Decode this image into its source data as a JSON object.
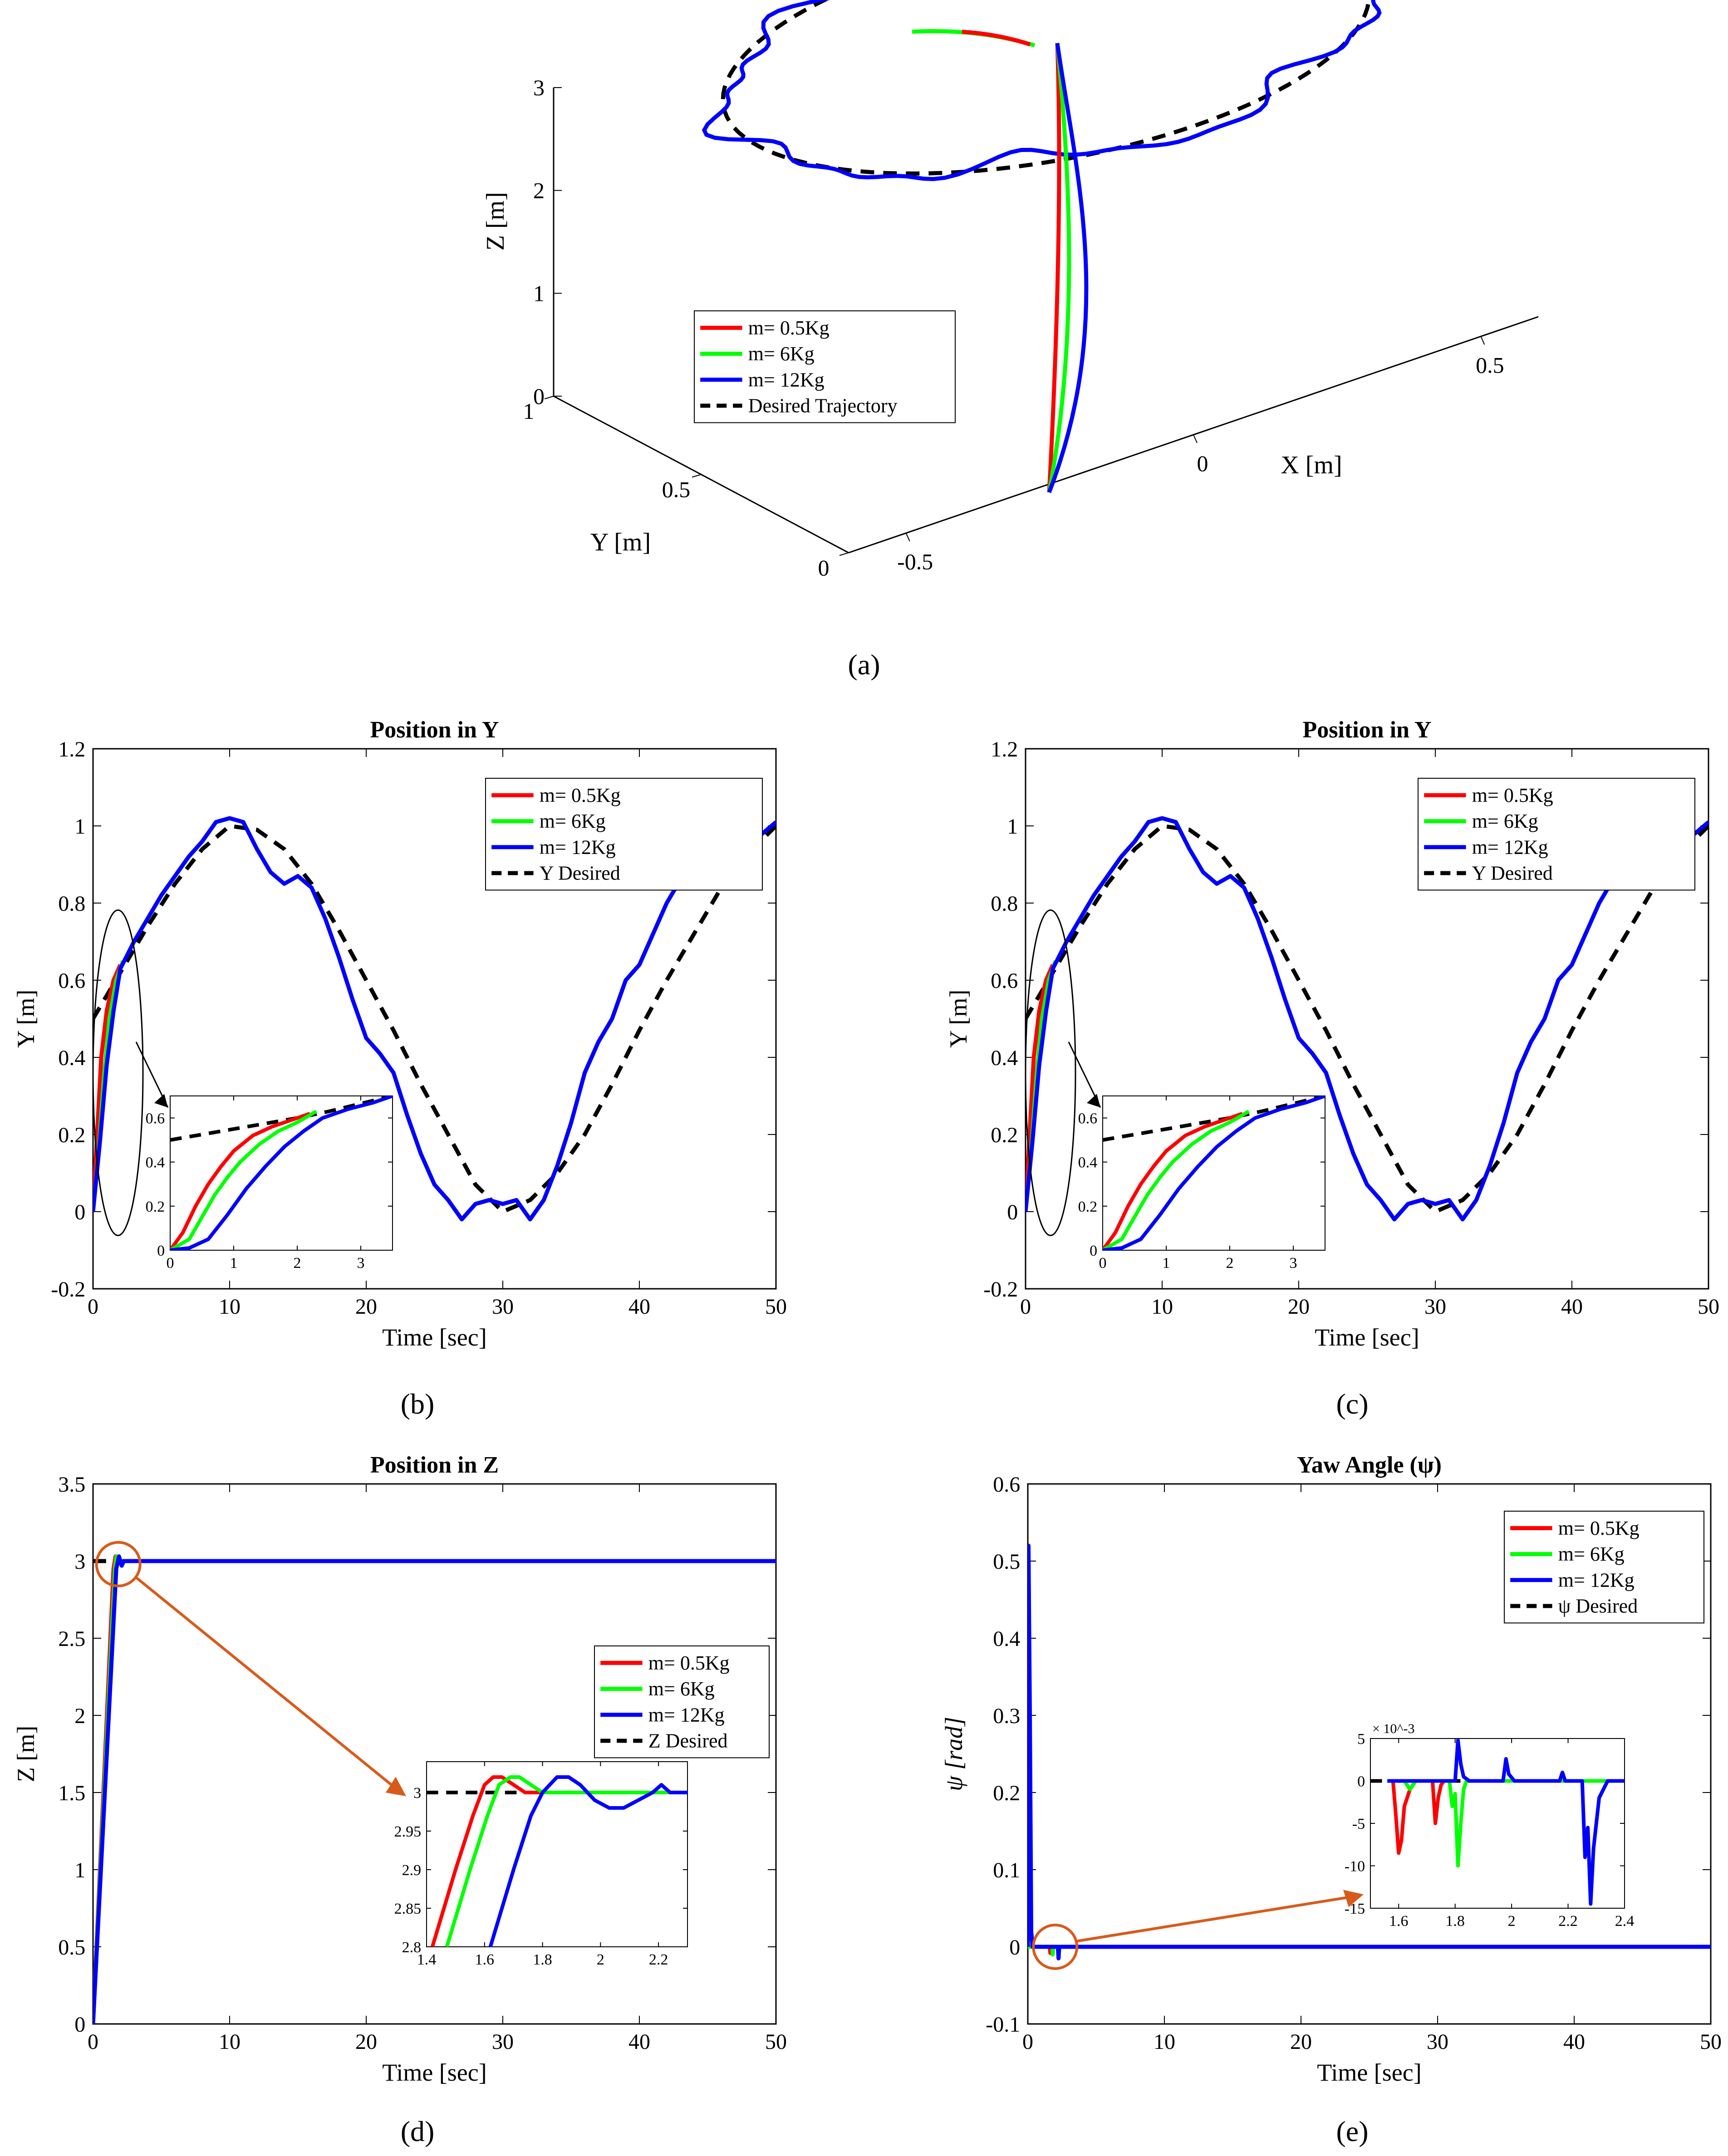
{
  "colors": {
    "red": "#ff0000",
    "green": "#00ff00",
    "blue": "#0000ff",
    "desired": "#000000",
    "arrow": "#d85a1a"
  },
  "panel_labels": {
    "a": "(a)",
    "b": "(b)",
    "c": "(c)",
    "d": "(d)",
    "e": "(e)"
  },
  "chart_data": [
    {
      "id": "a",
      "type": "line",
      "subtype": "3d-trajectory",
      "title": "",
      "xlabel": "X [m]",
      "ylabel": "Y [m]",
      "zlabel": "Z [m]",
      "x_ticks": [
        "-0.5",
        "0",
        "0.5"
      ],
      "y_ticks": [
        "0",
        "0.5",
        "1"
      ],
      "z_ticks": [
        "0",
        "1",
        "2",
        "3"
      ],
      "xlim": [
        -0.6,
        0.6
      ],
      "ylim": [
        0,
        1
      ],
      "zlim": [
        0,
        3
      ],
      "legend": [
        "m= 0.5Kg",
        "m= 6Kg",
        "m= 12Kg",
        "Desired Trajectory"
      ],
      "legend_position": "center",
      "desired": {
        "type": "circle",
        "z": 3,
        "center_x": 0,
        "center_y": 0.5,
        "radius": 0.5
      },
      "climb": {
        "from": [
          0,
          0,
          0
        ],
        "to": [
          0,
          0.5,
          3
        ]
      }
    },
    {
      "id": "b",
      "type": "line",
      "title": "Position in Y",
      "xlabel": "Time [sec]",
      "ylabel": "Y [m]",
      "xlim": [
        0,
        50
      ],
      "ylim": [
        -0.2,
        1.2
      ],
      "x_ticks": [
        "0",
        "10",
        "20",
        "30",
        "40",
        "50"
      ],
      "y_ticks": [
        "-0.2",
        "0",
        "0.2",
        "0.4",
        "0.6",
        "0.8",
        "1",
        "1.2"
      ],
      "legend": [
        "m= 0.5Kg",
        "m= 6Kg",
        "m= 12Kg",
        "Y Desired"
      ],
      "legend_position": "top-right",
      "desired": {
        "x": [
          0,
          2,
          4,
          6,
          8,
          10,
          12,
          14,
          16,
          18,
          20,
          22,
          24,
          26,
          28,
          30,
          32,
          34,
          36,
          38,
          40,
          42,
          44,
          46,
          48,
          50
        ],
        "y": [
          0.5,
          0.62,
          0.74,
          0.85,
          0.94,
          1.0,
          0.99,
          0.94,
          0.85,
          0.73,
          0.6,
          0.47,
          0.33,
          0.2,
          0.07,
          0.0,
          0.03,
          0.1,
          0.2,
          0.33,
          0.47,
          0.6,
          0.72,
          0.84,
          0.93,
          1.0
        ]
      },
      "series": [
        {
          "name": "m= 0.5Kg",
          "x": [
            0,
            0.3,
            0.6,
            1.0,
            1.5,
            2.0
          ],
          "y": [
            0.0,
            0.2,
            0.4,
            0.52,
            0.6,
            0.64
          ]
        },
        {
          "name": "m= 6Kg",
          "x": [
            0,
            0.4,
            0.8,
            1.2,
            1.7,
            2.2
          ],
          "y": [
            0.0,
            0.15,
            0.35,
            0.5,
            0.6,
            0.65
          ]
        },
        {
          "name": "m= 12Kg",
          "x": [
            0,
            0.5,
            1.0,
            1.5,
            2,
            3,
            4,
            5,
            6,
            7,
            8,
            9,
            10,
            11,
            12,
            13,
            14,
            15,
            16,
            17,
            18,
            19,
            20,
            21,
            22,
            23,
            24,
            25,
            26,
            27,
            28,
            29,
            30,
            31,
            32,
            33,
            34,
            35,
            36,
            37,
            38,
            39,
            40,
            41,
            42,
            43,
            44,
            45,
            46,
            47,
            48,
            49,
            50
          ],
          "y": [
            0.0,
            0.18,
            0.38,
            0.52,
            0.63,
            0.7,
            0.76,
            0.82,
            0.87,
            0.92,
            0.96,
            1.01,
            1.02,
            1.01,
            0.94,
            0.88,
            0.85,
            0.87,
            0.84,
            0.76,
            0.66,
            0.55,
            0.45,
            0.41,
            0.36,
            0.25,
            0.15,
            0.07,
            0.03,
            -0.02,
            0.02,
            0.03,
            0.02,
            0.03,
            -0.02,
            0.03,
            0.12,
            0.23,
            0.36,
            0.44,
            0.5,
            0.6,
            0.64,
            0.72,
            0.8,
            0.86,
            0.93,
            0.9,
            0.95,
            0.96,
            0.97,
            0.98,
            1.01
          ]
        }
      ],
      "inset": {
        "xlim": [
          0,
          3.5
        ],
        "ylim": [
          0,
          0.7
        ],
        "x_ticks": [
          "0",
          "1",
          "2",
          "3"
        ],
        "y_ticks": [
          "0",
          "0.2",
          "0.4",
          "0.6"
        ],
        "desired": {
          "x": [
            0,
            1,
            2,
            2.5,
            3.5
          ],
          "y": [
            0.5,
            0.55,
            0.6,
            0.63,
            0.7
          ]
        },
        "series": [
          {
            "name": "m= 0.5Kg",
            "x": [
              0,
              0.2,
              0.4,
              0.6,
              0.8,
              1.0,
              1.3,
              1.6,
              2.0,
              2.2
            ],
            "y": [
              0.0,
              0.08,
              0.2,
              0.3,
              0.38,
              0.45,
              0.52,
              0.56,
              0.6,
              0.62
            ]
          },
          {
            "name": "m= 6Kg",
            "x": [
              0,
              0.3,
              0.5,
              0.7,
              0.9,
              1.1,
              1.4,
              1.7,
              2.0,
              2.3
            ],
            "y": [
              0.0,
              0.05,
              0.15,
              0.25,
              0.33,
              0.4,
              0.48,
              0.54,
              0.58,
              0.63
            ]
          },
          {
            "name": "m= 12Kg",
            "x": [
              0,
              0.3,
              0.6,
              0.9,
              1.2,
              1.5,
              1.8,
              2.1,
              2.4,
              2.8,
              3.2,
              3.5
            ],
            "y": [
              0.0,
              0.01,
              0.05,
              0.16,
              0.28,
              0.38,
              0.47,
              0.54,
              0.6,
              0.64,
              0.67,
              0.7
            ]
          }
        ]
      }
    },
    {
      "id": "c",
      "type": "line",
      "title": "Position in Y",
      "xlabel": "Time [sec]",
      "ylabel": "Y [m]",
      "xlim": [
        0,
        50
      ],
      "ylim": [
        -0.2,
        1.2
      ],
      "x_ticks": [
        "0",
        "10",
        "20",
        "30",
        "40",
        "50"
      ],
      "y_ticks": [
        "-0.2",
        "0",
        "0.2",
        "0.4",
        "0.6",
        "0.8",
        "1",
        "1.2"
      ],
      "legend": [
        "m= 0.5Kg",
        "m= 6Kg",
        "m= 12Kg",
        "Y Desired"
      ],
      "legend_position": "top-right",
      "same_as": "b"
    },
    {
      "id": "d",
      "type": "line",
      "title": "Position in Z",
      "xlabel": "Time [sec]",
      "ylabel": "Z [m]",
      "xlim": [
        0,
        50
      ],
      "ylim": [
        0,
        3.5
      ],
      "x_ticks": [
        "0",
        "10",
        "20",
        "30",
        "40",
        "50"
      ],
      "y_ticks": [
        "0",
        "0.5",
        "1",
        "1.5",
        "2",
        "2.5",
        "3",
        "3.5"
      ],
      "legend": [
        "m= 0.5Kg",
        "m= 6Kg",
        "m= 12Kg",
        "Z Desired"
      ],
      "legend_position": "center-right",
      "desired": {
        "x": [
          0,
          50
        ],
        "y": [
          3,
          3
        ]
      },
      "series": [
        {
          "name": "m= 0.5Kg",
          "x": [
            0,
            1.5,
            1.65,
            1.75,
            50
          ],
          "y": [
            0,
            2.95,
            3.03,
            3.0,
            3.0
          ]
        },
        {
          "name": "m= 6Kg",
          "x": [
            0,
            1.6,
            1.72,
            1.85,
            50
          ],
          "y": [
            0,
            2.95,
            3.03,
            3.0,
            3.0
          ]
        },
        {
          "name": "m= 12Kg",
          "x": [
            0,
            1.7,
            1.9,
            2.1,
            2.25,
            50
          ],
          "y": [
            0,
            2.95,
            3.03,
            2.97,
            3.0,
            3.0
          ]
        }
      ],
      "inset": {
        "xlim": [
          1.4,
          2.3
        ],
        "ylim": [
          2.8,
          3.04
        ],
        "x_ticks": [
          "1.4",
          "1.6",
          "1.8",
          "2",
          "2.2"
        ],
        "y_ticks": [
          "2.8",
          "2.85",
          "2.9",
          "2.95",
          "3"
        ],
        "desired": {
          "x": [
            1.4,
            1.75
          ],
          "y": [
            3,
            3
          ]
        },
        "series": [
          {
            "name": "m= 0.5Kg",
            "x": [
              1.42,
              1.5,
              1.56,
              1.6,
              1.63,
              1.66,
              1.7,
              1.74,
              2.3
            ],
            "y": [
              2.8,
              2.9,
              2.97,
              3.01,
              3.02,
              3.02,
              3.01,
              3.0,
              3.0
            ]
          },
          {
            "name": "m= 6Kg",
            "x": [
              1.47,
              1.55,
              1.61,
              1.65,
              1.69,
              1.72,
              1.76,
              1.8,
              2.3
            ],
            "y": [
              2.8,
              2.9,
              2.97,
              3.01,
              3.02,
              3.02,
              3.01,
              3.0,
              3.0
            ]
          },
          {
            "name": "m= 12Kg",
            "x": [
              1.62,
              1.7,
              1.76,
              1.8,
              1.85,
              1.89,
              1.93,
              1.98,
              2.03,
              2.08,
              2.13,
              2.18,
              2.21,
              2.24,
              2.3
            ],
            "y": [
              2.8,
              2.9,
              2.97,
              3.0,
              3.02,
              3.02,
              3.01,
              2.99,
              2.98,
              2.98,
              2.99,
              3.0,
              3.01,
              3.0,
              3.0
            ]
          }
        ]
      }
    },
    {
      "id": "e",
      "type": "line",
      "title": "Yaw Angle (ψ)",
      "xlabel": "Time [sec]",
      "ylabel": "ψ [rad]",
      "xlim": [
        0,
        50
      ],
      "ylim": [
        -0.1,
        0.6
      ],
      "x_ticks": [
        "0",
        "10",
        "20",
        "30",
        "40",
        "50"
      ],
      "y_ticks": [
        "-0.1",
        "0",
        "0.1",
        "0.2",
        "0.3",
        "0.4",
        "0.5",
        "0.6"
      ],
      "legend": [
        "m= 0.5Kg",
        "m= 6Kg",
        "m= 12Kg",
        "ψ Desired"
      ],
      "legend_position": "top-right",
      "desired": {
        "x": [
          0,
          50
        ],
        "y": [
          0,
          0
        ]
      },
      "series": [
        {
          "name": "m= 0.5Kg",
          "x": [
            0,
            1.6,
            1.65,
            1.7,
            50
          ],
          "y": [
            0,
            0,
            -0.008,
            0,
            0
          ]
        },
        {
          "name": "m= 6Kg",
          "x": [
            0,
            1.8,
            1.82,
            1.85,
            50
          ],
          "y": [
            0,
            0,
            -0.01,
            0,
            0
          ]
        },
        {
          "name": "m= 12Kg",
          "x": [
            0,
            0.05,
            0.15,
            0.25,
            0.35,
            2.2,
            2.25,
            2.3,
            50
          ],
          "y": [
            0,
            0.52,
            0.3,
            0.02,
            0,
            0,
            -0.015,
            0,
            0
          ]
        }
      ],
      "inset": {
        "xlim": [
          1.5,
          2.4
        ],
        "ylim": [
          -15,
          5
        ],
        "scale_label": "× 10^-3",
        "x_ticks": [
          "1.6",
          "1.8",
          "2",
          "2.2",
          "2.4"
        ],
        "y_ticks": [
          "-15",
          "-10",
          "-5",
          "0",
          "5"
        ],
        "desired": {
          "x": [
            1.5,
            2.4
          ],
          "y": [
            0,
            0
          ]
        },
        "series": [
          {
            "name": "m= 0.5Kg",
            "x": [
              1.56,
              1.58,
              1.59,
              1.6,
              1.61,
              1.62,
              1.64,
              1.66,
              1.72,
              1.73,
              1.74,
              1.75,
              1.76
            ],
            "y": [
              0,
              0,
              -4,
              -8.5,
              -7,
              -3,
              -1,
              0,
              0,
              -5,
              -2,
              -0.5,
              0
            ]
          },
          {
            "name": "m= 6Kg",
            "x": [
              1.56,
              1.62,
              1.64,
              1.66,
              1.78,
              1.79,
              1.8,
              1.81,
              1.82,
              1.83,
              1.84,
              2.4
            ],
            "y": [
              0,
              0,
              -1,
              0,
              0,
              -3,
              -1.5,
              -10,
              -5,
              -1,
              0,
              0
            ]
          },
          {
            "name": "m= 12Kg",
            "x": [
              1.56,
              1.8,
              1.81,
              1.82,
              1.83,
              1.85,
              1.97,
              1.98,
              1.99,
              2.01,
              2.17,
              2.18,
              2.19,
              2.25,
              2.26,
              2.27,
              2.28,
              2.29,
              2.31,
              2.34,
              2.4
            ],
            "y": [
              0,
              0,
              4.8,
              2,
              0.5,
              0,
              0,
              2.6,
              0.8,
              0,
              0,
              1,
              0,
              0,
              -9,
              -5.5,
              -14.5,
              -8,
              -2,
              0,
              0
            ]
          }
        ]
      }
    }
  ]
}
